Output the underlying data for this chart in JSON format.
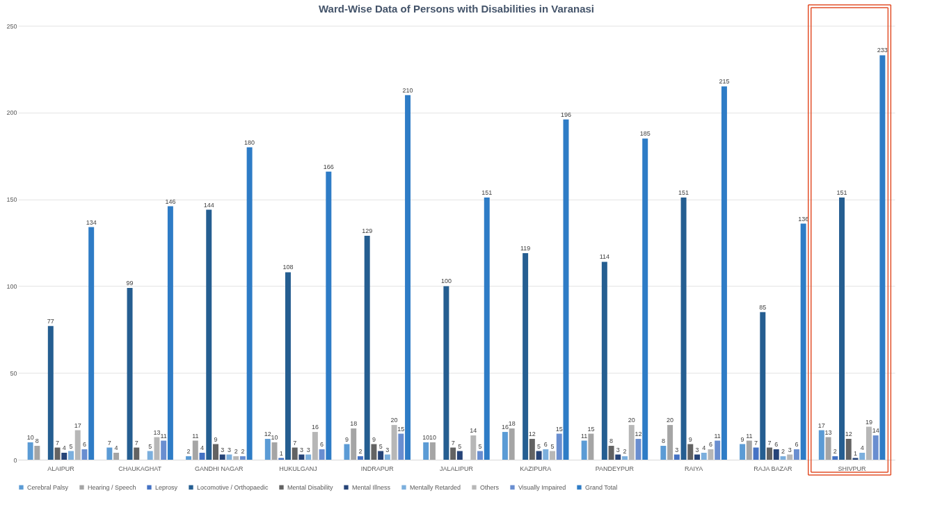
{
  "chart_data": {
    "type": "bar",
    "title": "Ward-Wise Data of Persons with Disabilities in Varanasi",
    "categories": [
      "ALAIPUR",
      "CHAUKAGHAT",
      "GANDHI NAGAR",
      "HUKULGANJ",
      "INDRAPUR",
      "JALALIPUR",
      "KAZIPURA",
      "PANDEYPUR",
      "RAIYA",
      "RAJA BAZAR",
      "SHIVPUR"
    ],
    "series": [
      {
        "name": "Cerebral Palsy",
        "color": "#5b9bd5",
        "values": [
          10,
          7,
          2,
          12,
          9,
          10,
          16,
          11,
          8,
          9,
          17
        ]
      },
      {
        "name": "Hearing / Speech",
        "color": "#a5a5a5",
        "values": [
          8,
          4,
          11,
          10,
          18,
          10,
          18,
          15,
          20,
          11,
          13
        ]
      },
      {
        "name": "Leprosy",
        "color": "#4472c4",
        "values": [
          null,
          null,
          4,
          1,
          2,
          null,
          null,
          null,
          3,
          7,
          2
        ]
      },
      {
        "name": "Locomotive / Orthopaedic",
        "color": "#255e91",
        "values": [
          77,
          99,
          144,
          108,
          129,
          100,
          119,
          114,
          151,
          85,
          151
        ]
      },
      {
        "name": "Mental Disability",
        "color": "#636363",
        "values": [
          7,
          7,
          9,
          7,
          9,
          7,
          12,
          8,
          9,
          7,
          12
        ]
      },
      {
        "name": "Mental Illness",
        "color": "#264478",
        "values": [
          4,
          null,
          3,
          3,
          5,
          5,
          5,
          3,
          3,
          6,
          1
        ]
      },
      {
        "name": "Mentally Retarded",
        "color": "#7cafdd",
        "values": [
          5,
          5,
          3,
          3,
          3,
          null,
          6,
          2,
          4,
          2,
          4
        ]
      },
      {
        "name": "Others",
        "color": "#b7b7b7",
        "values": [
          17,
          13,
          2,
          16,
          20,
          14,
          5,
          20,
          6,
          3,
          19
        ]
      },
      {
        "name": "Visually Impaired",
        "color": "#698ed0",
        "values": [
          6,
          11,
          2,
          6,
          15,
          5,
          15,
          12,
          11,
          6,
          14
        ]
      },
      {
        "name": "Grand Total",
        "color": "#2e7cc6",
        "values": [
          134,
          146,
          180,
          166,
          210,
          151,
          196,
          185,
          215,
          136,
          233
        ]
      }
    ],
    "ylim": [
      0,
      250
    ],
    "yticks": [
      0,
      50,
      100,
      150,
      200,
      250
    ],
    "grid": "y",
    "legend": "bottom",
    "data_labels": true
  }
}
